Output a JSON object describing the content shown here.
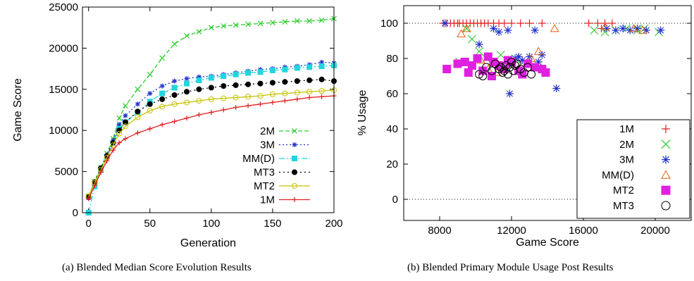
{
  "captions": {
    "a": "(a) Blended Median Score Evolution Results",
    "b": "(b) Blended Primary Module Usage Post Results"
  },
  "chart_data": [
    {
      "type": "line",
      "xlabel": "Generation",
      "ylabel": "Game Score",
      "xlim": [
        -5,
        200
      ],
      "ylim": [
        0,
        25000
      ],
      "xticks": [
        0,
        50,
        100,
        150,
        200
      ],
      "yticks": [
        0,
        5000,
        10000,
        15000,
        20000,
        25000
      ],
      "grid": false,
      "legend_position": "bottom-right",
      "x": [
        0,
        5,
        10,
        15,
        20,
        25,
        30,
        40,
        50,
        60,
        70,
        80,
        90,
        100,
        110,
        120,
        130,
        140,
        150,
        160,
        170,
        180,
        190,
        200
      ],
      "series": [
        {
          "name": "2M",
          "color": "#2ecc2e",
          "dash": "6,3",
          "marker": "x",
          "values": [
            2000,
            3800,
            5500,
            7200,
            9000,
            11500,
            13000,
            15000,
            16800,
            18800,
            20500,
            21500,
            22000,
            22500,
            22700,
            22800,
            22900,
            23000,
            23100,
            23200,
            23300,
            23300,
            23400,
            23600
          ]
        },
        {
          "name": "3M",
          "color": "#2233cc",
          "dash": "2,3",
          "marker": "star",
          "values": [
            1800,
            3500,
            5300,
            7000,
            8800,
            10700,
            11800,
            13200,
            14500,
            15400,
            16000,
            16300,
            16500,
            16600,
            16800,
            17000,
            17200,
            17400,
            17500,
            17700,
            17800,
            18000,
            18300,
            18200
          ]
        },
        {
          "name": "MM(D)",
          "color": "#22d4e0",
          "dash": "8,3,2,3",
          "marker": "square",
          "values": [
            0,
            3200,
            5200,
            6800,
            8500,
            10200,
            11000,
            12200,
            13500,
            14500,
            15200,
            15700,
            16100,
            16400,
            16600,
            16800,
            17000,
            17100,
            17300,
            17400,
            17600,
            17700,
            17800,
            17900
          ]
        },
        {
          "name": "MT3",
          "color": "#000000",
          "dash": "2,4",
          "marker": "circle",
          "values": [
            1900,
            3700,
            5400,
            6900,
            8500,
            10000,
            11000,
            12300,
            13200,
            13800,
            14300,
            14700,
            15000,
            15200,
            15400,
            15500,
            15600,
            15700,
            15800,
            15900,
            16000,
            16100,
            16200,
            16000
          ]
        },
        {
          "name": "MT2",
          "color": "#c8c200",
          "dash": "",
          "marker": "open-circle",
          "values": [
            2000,
            3600,
            5200,
            6700,
            8200,
            9600,
            10500,
            11600,
            12400,
            12900,
            13200,
            13400,
            13600,
            13800,
            13900,
            14000,
            14100,
            14200,
            14400,
            14500,
            14600,
            14700,
            14800,
            14900
          ]
        },
        {
          "name": "1M",
          "color": "#e02020",
          "dash": "",
          "marker": "plus",
          "values": [
            1700,
            3300,
            4900,
            6300,
            7600,
            8500,
            9000,
            9700,
            10200,
            10700,
            11100,
            11500,
            11900,
            12200,
            12500,
            12800,
            13000,
            13200,
            13400,
            13600,
            13800,
            14000,
            14100,
            14200
          ]
        }
      ]
    },
    {
      "type": "scatter",
      "xlabel": "Game Score",
      "ylabel": "% Usage",
      "xlim": [
        6000,
        22000
      ],
      "ylim": [
        -12,
        110
      ],
      "xticks": [
        8000,
        12000,
        16000,
        20000
      ],
      "yticks": [
        0,
        20,
        40,
        60,
        80,
        100
      ],
      "reference_lines": [
        0,
        100
      ],
      "grid": false,
      "legend_position": "bottom-right",
      "series": [
        {
          "name": "1M",
          "color": "#e02020",
          "marker": "plus",
          "points": [
            [
              8200,
              100
            ],
            [
              8400,
              100
            ],
            [
              8600,
              100
            ],
            [
              8800,
              100
            ],
            [
              9000,
              100
            ],
            [
              9100,
              100
            ],
            [
              9300,
              100
            ],
            [
              9500,
              100
            ],
            [
              9700,
              100
            ],
            [
              9900,
              100
            ],
            [
              10100,
              100
            ],
            [
              10300,
              100
            ],
            [
              10500,
              100
            ],
            [
              10700,
              100
            ],
            [
              11000,
              100
            ],
            [
              11300,
              100
            ],
            [
              11600,
              100
            ],
            [
              12000,
              100
            ],
            [
              12500,
              100
            ],
            [
              13000,
              100
            ],
            [
              13700,
              100
            ],
            [
              16300,
              100
            ],
            [
              16800,
              100
            ],
            [
              17200,
              100
            ],
            [
              17600,
              100
            ],
            [
              17000,
              97
            ]
          ]
        },
        {
          "name": "2M",
          "color": "#2ecc2e",
          "marker": "x",
          "points": [
            [
              9500,
              97
            ],
            [
              9800,
              91
            ],
            [
              10200,
              84
            ],
            [
              10600,
              80
            ],
            [
              11000,
              78
            ],
            [
              11400,
              82
            ],
            [
              11800,
              77
            ],
            [
              12200,
              80
            ],
            [
              16600,
              96
            ],
            [
              17200,
              95
            ],
            [
              17800,
              96
            ],
            [
              18400,
              97
            ],
            [
              19000,
              96
            ],
            [
              19400,
              97
            ],
            [
              20200,
              95
            ],
            [
              9100,
              78
            ]
          ]
        },
        {
          "name": "3M",
          "color": "#2233cc",
          "marker": "star",
          "points": [
            [
              8300,
              100
            ],
            [
              10200,
              88
            ],
            [
              11000,
              97
            ],
            [
              11300,
              95
            ],
            [
              11800,
              96
            ],
            [
              12200,
              80
            ],
            [
              12600,
              79
            ],
            [
              13000,
              81
            ],
            [
              13500,
              78
            ],
            [
              11900,
              60
            ],
            [
              14500,
              63
            ],
            [
              13700,
              82
            ],
            [
              13300,
              96
            ],
            [
              17300,
              97
            ],
            [
              17800,
              96
            ],
            [
              18200,
              97
            ],
            [
              18600,
              96
            ],
            [
              19000,
              97
            ],
            [
              19500,
              96
            ],
            [
              20300,
              96
            ],
            [
              12400,
              81
            ]
          ]
        },
        {
          "name": "MM(D)",
          "color": "#e06010",
          "marker": "triangle",
          "points": [
            [
              9200,
              94
            ],
            [
              9500,
              97
            ],
            [
              10300,
              79
            ],
            [
              11200,
              72
            ],
            [
              11700,
              77
            ],
            [
              13500,
              84
            ],
            [
              13100,
              80
            ],
            [
              14400,
              97
            ],
            [
              17200,
              98
            ],
            [
              18800,
              97
            ],
            [
              19300,
              96
            ],
            [
              10700,
              74
            ]
          ]
        },
        {
          "name": "MT2",
          "color": "#e020e0",
          "marker": "square",
          "points": [
            [
              8400,
              74
            ],
            [
              9000,
              77
            ],
            [
              9400,
              78
            ],
            [
              9800,
              76
            ],
            [
              10100,
              80
            ],
            [
              10400,
              73
            ],
            [
              10700,
              81
            ],
            [
              11000,
              78
            ],
            [
              11300,
              76
            ],
            [
              11600,
              74
            ],
            [
              12000,
              78
            ],
            [
              12400,
              73
            ],
            [
              12900,
              77
            ],
            [
              13300,
              75
            ],
            [
              13700,
              74
            ],
            [
              9600,
              72
            ],
            [
              10900,
              70
            ],
            [
              12600,
              71
            ],
            [
              11800,
              79
            ],
            [
              13900,
              72
            ]
          ]
        },
        {
          "name": "MT3",
          "color": "#000000",
          "marker": "open-circle",
          "points": [
            [
              10200,
              71
            ],
            [
              10600,
              75
            ],
            [
              10900,
              73
            ],
            [
              11100,
              77
            ],
            [
              11300,
              74
            ],
            [
              11500,
              72
            ],
            [
              11700,
              76
            ],
            [
              11900,
              75
            ],
            [
              12100,
              73
            ],
            [
              12300,
              77
            ],
            [
              12500,
              74
            ],
            [
              12700,
              72
            ],
            [
              12900,
              75
            ],
            [
              11800,
              71
            ],
            [
              12000,
              78
            ],
            [
              13100,
              71
            ],
            [
              10400,
              70
            ],
            [
              11400,
              75
            ],
            [
              12200,
              76
            ],
            [
              11600,
              73
            ]
          ]
        }
      ]
    }
  ]
}
